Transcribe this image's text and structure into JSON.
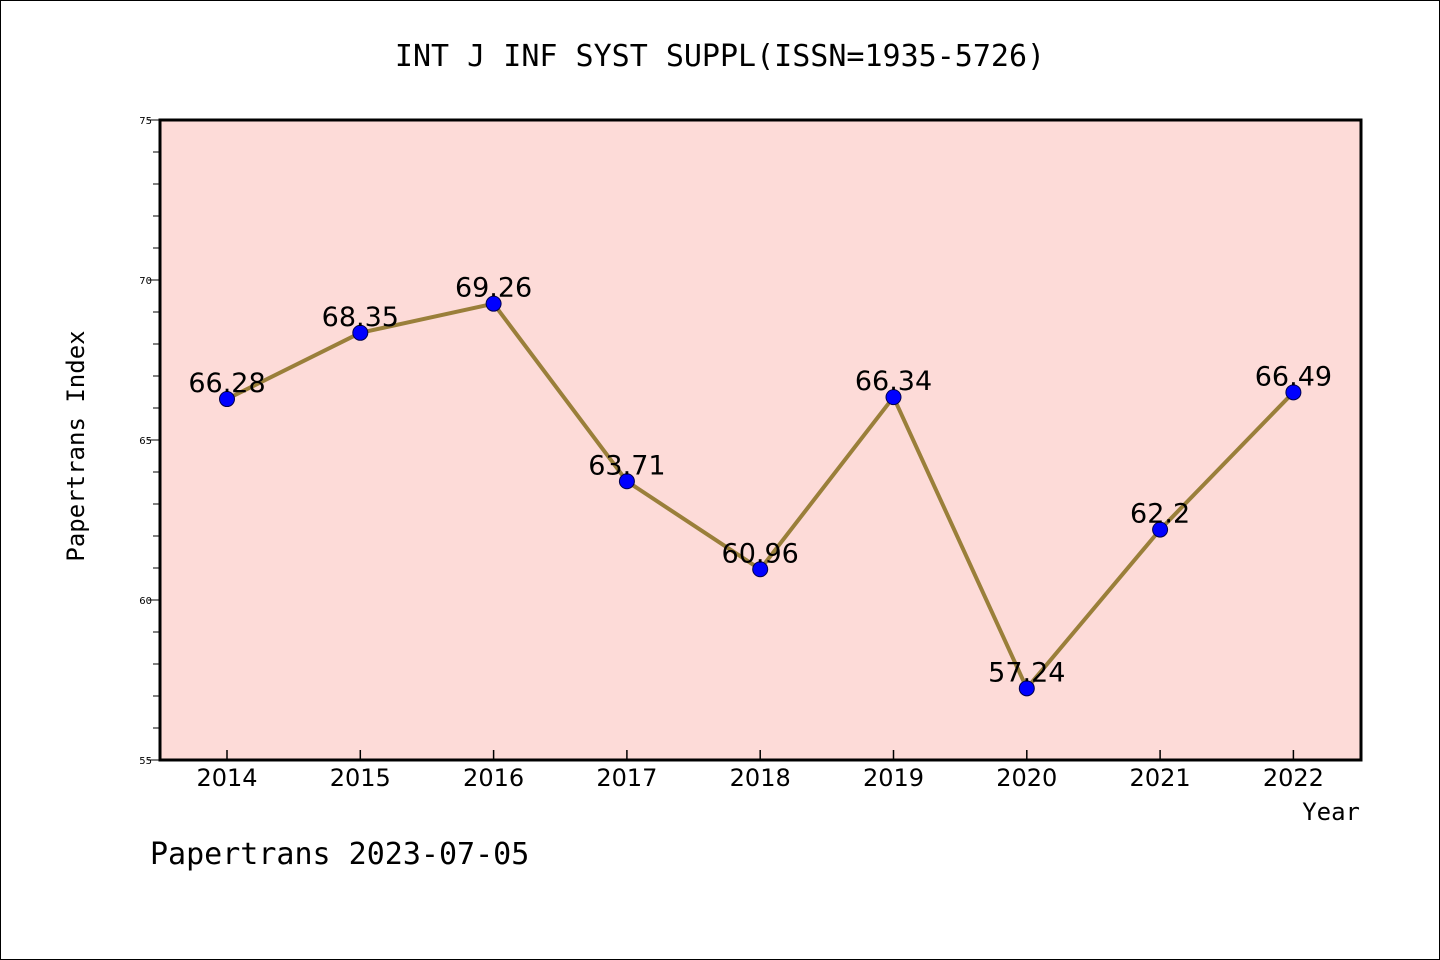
{
  "chart_data": {
    "type": "line",
    "title": "INT J INF SYST SUPPL(ISSN=1935-5726)",
    "xlabel": "Year",
    "ylabel": "Papertrans Index",
    "categories": [
      "2014",
      "2015",
      "2016",
      "2017",
      "2018",
      "2019",
      "2020",
      "2021",
      "2022"
    ],
    "series": [
      {
        "values": [
          66.28,
          68.35,
          69.26,
          63.71,
          60.96,
          66.34,
          57.24,
          62.2,
          66.49
        ]
      }
    ],
    "data_labels": [
      "66.28",
      "68.35",
      "69.26",
      "63.71",
      "60.96",
      "66.34",
      "57.24",
      "62.2",
      "66.49"
    ],
    "ylim": [
      55,
      75
    ],
    "y_ticks": [
      "55",
      "60",
      "65",
      "70",
      "75"
    ],
    "grid": false,
    "colors": {
      "plot_background": "#fddbd8",
      "line": "#9a7f3a",
      "marker": "#0000ff",
      "axis": "#000000"
    }
  },
  "footer": {
    "text": "Papertrans 2023-07-05"
  }
}
